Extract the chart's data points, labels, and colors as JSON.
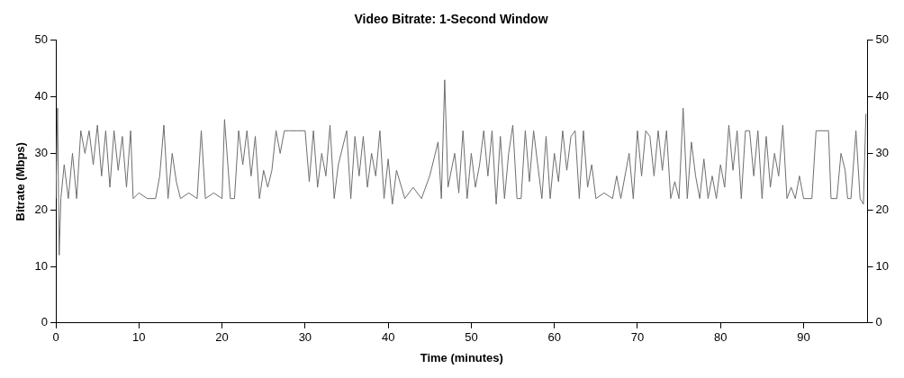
{
  "chart_data": {
    "type": "line",
    "title": "Video Bitrate: 1-Second Window",
    "xlabel": "Time (minutes)",
    "ylabel": "Bitrate (Mbps)",
    "xlim": [
      0,
      97.7
    ],
    "xticks": [
      0,
      10,
      20,
      30,
      40,
      50,
      60,
      70,
      80,
      90
    ],
    "ylim": [
      0,
      50
    ],
    "yticks": [
      0,
      10,
      20,
      30,
      40,
      50
    ],
    "y2lim": [
      0,
      50
    ],
    "y2ticks": [
      0,
      10,
      20,
      30,
      40,
      50
    ],
    "grid": false,
    "legend": false,
    "marker": "none",
    "line_style": "solid",
    "series": [
      {
        "color": "#6e6e6e",
        "x": [
          0,
          0.2,
          0.4,
          0.6,
          1,
          1.5,
          2,
          2.5,
          3,
          3.5,
          4,
          4.5,
          5,
          5.5,
          6,
          6.5,
          7,
          7.5,
          8,
          8.5,
          9,
          9.3,
          10,
          11,
          12,
          12.5,
          13,
          13.5,
          14,
          14.5,
          15,
          16,
          17,
          17.5,
          18,
          19,
          20,
          20.3,
          21,
          21.5,
          22,
          22.5,
          23,
          23.5,
          24,
          24.5,
          25,
          25.5,
          26,
          26.5,
          27,
          27.5,
          28,
          29,
          30,
          30.5,
          31,
          31.5,
          32,
          32.5,
          33,
          33.5,
          34,
          35,
          35.5,
          36,
          36.5,
          37,
          37.5,
          38,
          38.5,
          39,
          39.5,
          40,
          40.5,
          41,
          42,
          43,
          44,
          45,
          46,
          46.4,
          46.8,
          47.2,
          48,
          48.5,
          49,
          49.5,
          50,
          50.5,
          51,
          51.5,
          52,
          52.5,
          53,
          53.5,
          54,
          54.5,
          55,
          55.5,
          56,
          56.5,
          57,
          57.5,
          58,
          58.5,
          59,
          59.5,
          60,
          60.5,
          61,
          61.5,
          62,
          62.5,
          63,
          63.5,
          64,
          64.5,
          65,
          66,
          67,
          67.5,
          68,
          69,
          69.5,
          70,
          70.5,
          71,
          71.5,
          72,
          72.5,
          73,
          73.5,
          74,
          74.5,
          75,
          75.5,
          76,
          76.5,
          77,
          77.5,
          78,
          78.5,
          79,
          79.5,
          80,
          80.5,
          81,
          81.5,
          82,
          82.5,
          83,
          83.5,
          84,
          84.5,
          85,
          85.5,
          86,
          86.5,
          87,
          87.5,
          88,
          88.5,
          89,
          89.5,
          90,
          91,
          91.5,
          92,
          93,
          93.3,
          94,
          94.5,
          95,
          95.3,
          95.7,
          96.3,
          96.8,
          97.2,
          97.5
        ],
        "values": [
          22,
          38,
          12,
          22,
          28,
          22,
          30,
          22,
          34,
          30,
          34,
          28,
          35,
          26,
          34,
          24,
          34,
          27,
          33,
          24,
          34,
          22,
          23,
          22,
          22,
          26,
          35,
          22,
          30,
          25,
          22,
          23,
          22,
          34,
          22,
          23,
          22,
          36,
          22,
          22,
          34,
          28,
          34,
          26,
          33,
          22,
          27,
          24,
          27,
          34,
          30,
          34,
          34,
          34,
          34,
          25,
          34,
          24,
          30,
          26,
          35,
          22,
          28,
          34,
          22,
          33,
          26,
          33,
          24,
          30,
          26,
          34,
          22,
          29,
          21,
          27,
          22,
          24,
          22,
          26,
          32,
          22,
          43,
          24,
          30,
          23,
          34,
          22,
          30,
          24,
          28,
          34,
          26,
          34,
          21,
          33,
          22,
          30,
          35,
          22,
          22,
          34,
          25,
          34,
          28,
          22,
          33,
          22,
          30,
          25,
          34,
          27,
          33,
          34,
          22,
          34,
          24,
          28,
          22,
          23,
          22,
          26,
          22,
          30,
          22,
          34,
          26,
          34,
          33,
          26,
          34,
          27,
          34,
          22,
          25,
          22,
          38,
          22,
          32,
          26,
          22,
          29,
          22,
          26,
          22,
          28,
          24,
          35,
          27,
          34,
          22,
          34,
          34,
          26,
          34,
          22,
          33,
          24,
          30,
          26,
          35,
          22,
          24,
          22,
          26,
          22,
          22,
          34,
          34,
          34,
          22,
          22,
          30,
          27,
          22,
          22,
          34,
          22,
          21,
          37
        ]
      }
    ]
  }
}
